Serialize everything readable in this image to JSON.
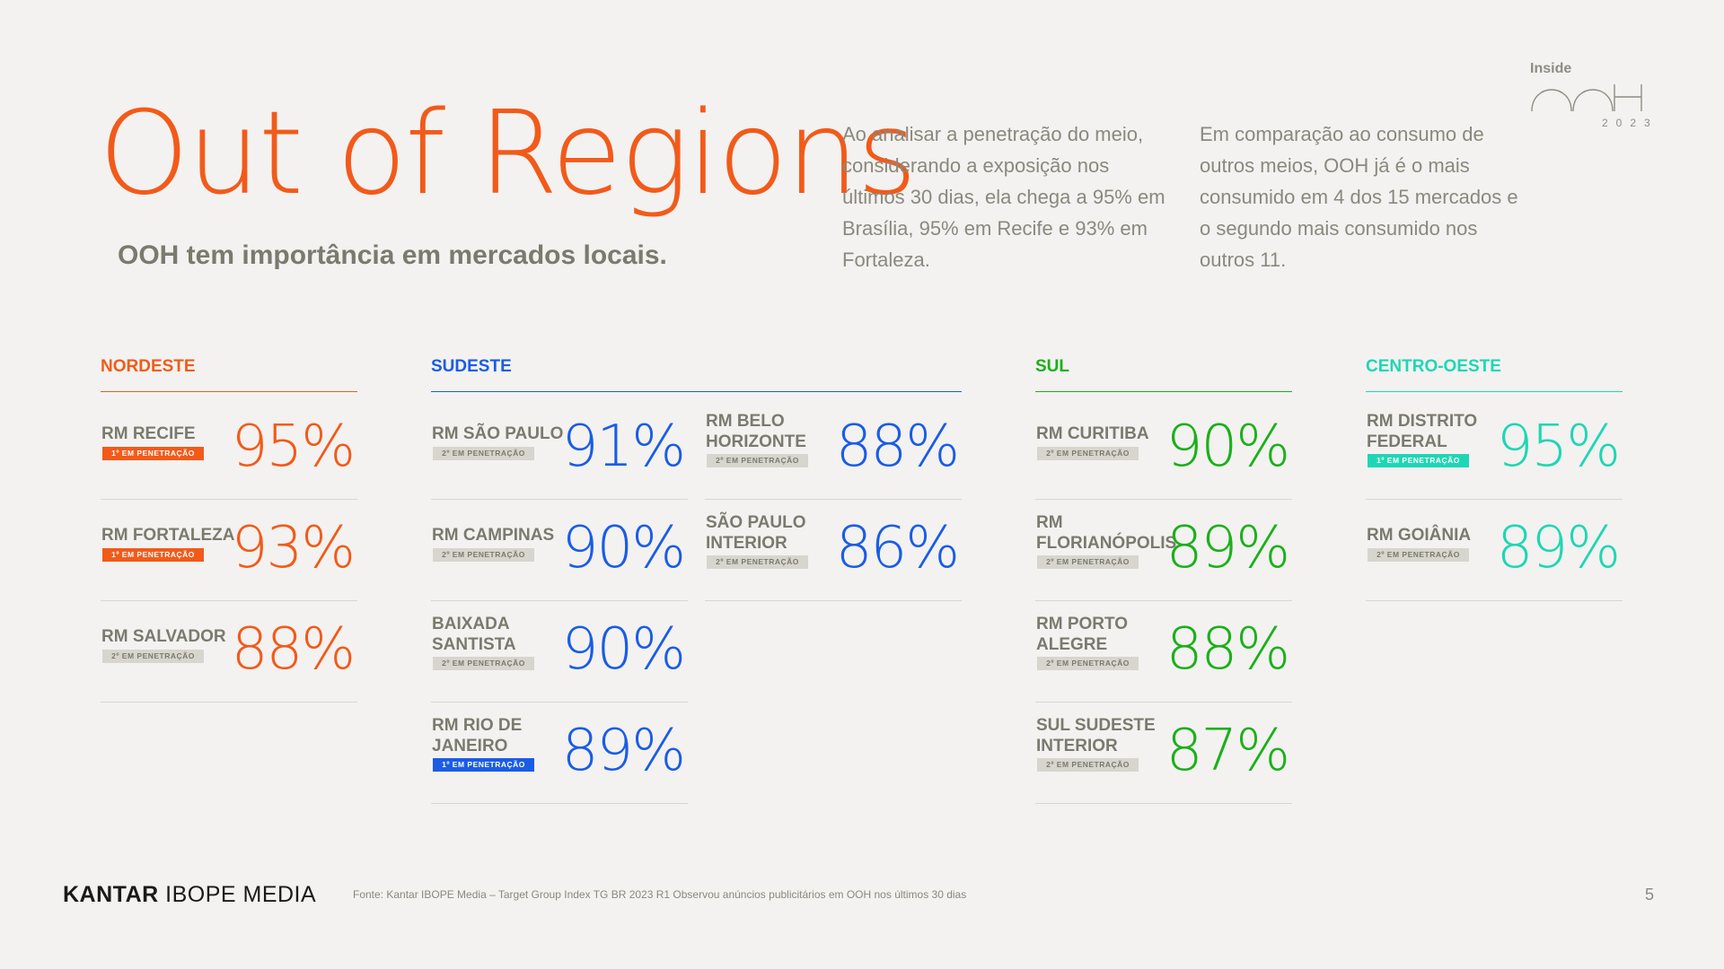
{
  "logo": {
    "word": "Inside",
    "mark": "OOH",
    "year": "2023"
  },
  "header": {
    "title": "Out of Regions",
    "subtitle": "OOH tem importância em mercados locais.",
    "paragraph_1": "Ao analisar a penetração do meio, considerando a exposição nos últimos 30 dias, ela chega a 95% em Brasília, 95% em Recife e 93% em Fortaleza.",
    "paragraph_2": "Em comparação ao consumo de outros meios, OOH já é o mais consumido em 4 dos 15 mercados e o segundo mais consumido nos outros 11."
  },
  "colors": {
    "nordeste": "#f25a1a",
    "sudeste": "#1a5ce6",
    "sul": "#1ab01a",
    "centro_oeste": "#1fd6b4",
    "badge_gray": "#d7d5cd"
  },
  "regions": {
    "nordeste": {
      "label": "NORDESTE",
      "cards": [
        {
          "city": "RM RECIFE",
          "badge": "1º EM PENETRAÇÃO",
          "first": true,
          "pct": "95%"
        },
        {
          "city": "RM FORTALEZA",
          "badge": "1º EM PENETRAÇÃO",
          "first": true,
          "pct": "93%"
        },
        {
          "city": "RM SALVADOR",
          "badge": "2º EM PENETRAÇÃO",
          "first": false,
          "pct": "88%"
        }
      ]
    },
    "sudeste": {
      "label": "SUDESTE",
      "cards": [
        {
          "city": "RM SÃO PAULO",
          "badge": "2º EM PENETRAÇÃO",
          "first": false,
          "pct": "91%"
        },
        {
          "city": "RM CAMPINAS",
          "badge": "2º EM PENETRAÇÃO",
          "first": false,
          "pct": "90%"
        },
        {
          "city": "BAIXADA SANTISTA",
          "badge": "2º EM PENETRAÇÃO",
          "first": false,
          "pct": "90%"
        },
        {
          "city": "RM RIO DE JANEIRO",
          "badge": "1º EM PENETRAÇÃO",
          "first": true,
          "pct": "89%"
        },
        {
          "city": "RM BELO HORIZONTE",
          "badge": "2º EM PENETRAÇÃO",
          "first": false,
          "pct": "88%"
        },
        {
          "city": "SÃO PAULO INTERIOR",
          "badge": "2º EM PENETRAÇÃO",
          "first": false,
          "pct": "86%"
        }
      ]
    },
    "sul": {
      "label": "SUL",
      "cards": [
        {
          "city": "RM CURITIBA",
          "badge": "2º EM PENETRAÇÃO",
          "first": false,
          "pct": "90%"
        },
        {
          "city": "RM FLORIANÓPOLIS",
          "badge": "2º EM PENETRAÇÃO",
          "first": false,
          "pct": "89%"
        },
        {
          "city": "RM PORTO ALEGRE",
          "badge": "2º EM PENETRAÇÃO",
          "first": false,
          "pct": "88%"
        },
        {
          "city": "SUL SUDESTE INTERIOR",
          "badge": "2º EM PENETRAÇÃO",
          "first": false,
          "pct": "87%"
        }
      ]
    },
    "centro_oeste": {
      "label": "CENTRO-OESTE",
      "cards": [
        {
          "city": "RM DISTRITO FEDERAL",
          "badge": "1º EM PENETRAÇÃO",
          "first": true,
          "pct": "95%"
        },
        {
          "city": "RM GOIÂNIA",
          "badge": "2º EM PENETRAÇÃO",
          "first": false,
          "pct": "89%"
        }
      ]
    }
  },
  "footer": {
    "brand_bold": "KANTAR",
    "brand_rest": "IBOPE MEDIA",
    "source": "Fonte: Kantar IBOPE Media – Target Group Index  TG BR 2023 R1 Observou anúncios publicitários em OOH nos últimos 30 dias",
    "page": "5"
  }
}
